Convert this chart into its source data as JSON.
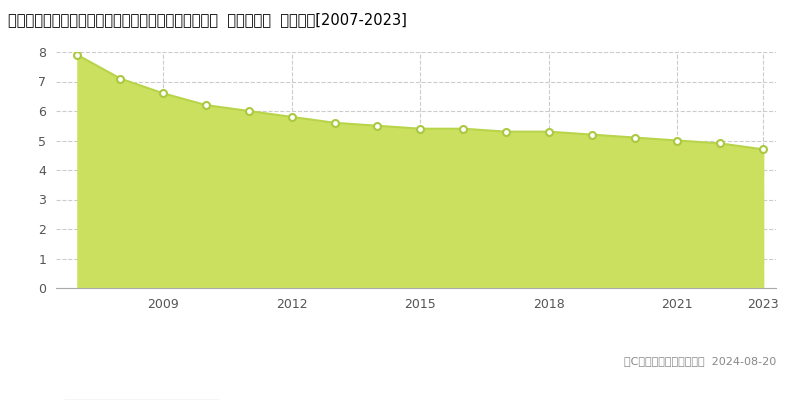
{
  "title": "熊本県球磨郡多良木町大字多良木字下新地５５５番２  基準地価格  地価推移[2007-2023]",
  "years": [
    2007,
    2008,
    2009,
    2010,
    2011,
    2012,
    2013,
    2014,
    2015,
    2016,
    2017,
    2018,
    2019,
    2020,
    2021,
    2022,
    2023
  ],
  "values": [
    7.9,
    7.1,
    6.6,
    6.2,
    6.0,
    5.8,
    5.6,
    5.5,
    5.4,
    5.4,
    5.3,
    5.3,
    5.2,
    5.1,
    5.0,
    4.9,
    4.7
  ],
  "ylim": [
    0,
    8
  ],
  "yticks": [
    0,
    1,
    2,
    3,
    4,
    5,
    6,
    7,
    8
  ],
  "xticks": [
    2009,
    2012,
    2015,
    2018,
    2021,
    2023
  ],
  "line_color": "#b8d44a",
  "fill_color": "#cce060",
  "marker_face": "#ffffff",
  "marker_edge": "#aac840",
  "grid_color": "#cccccc",
  "bg_color": "#ffffff",
  "plot_bg_color": "#ffffff",
  "legend_color": "#c8e050",
  "copyright_text": "（C）土地価格ドットコム  2024-08-20",
  "title_fontsize": 10.5,
  "axis_fontsize": 9,
  "legend_fontsize": 9,
  "copyright_fontsize": 8
}
